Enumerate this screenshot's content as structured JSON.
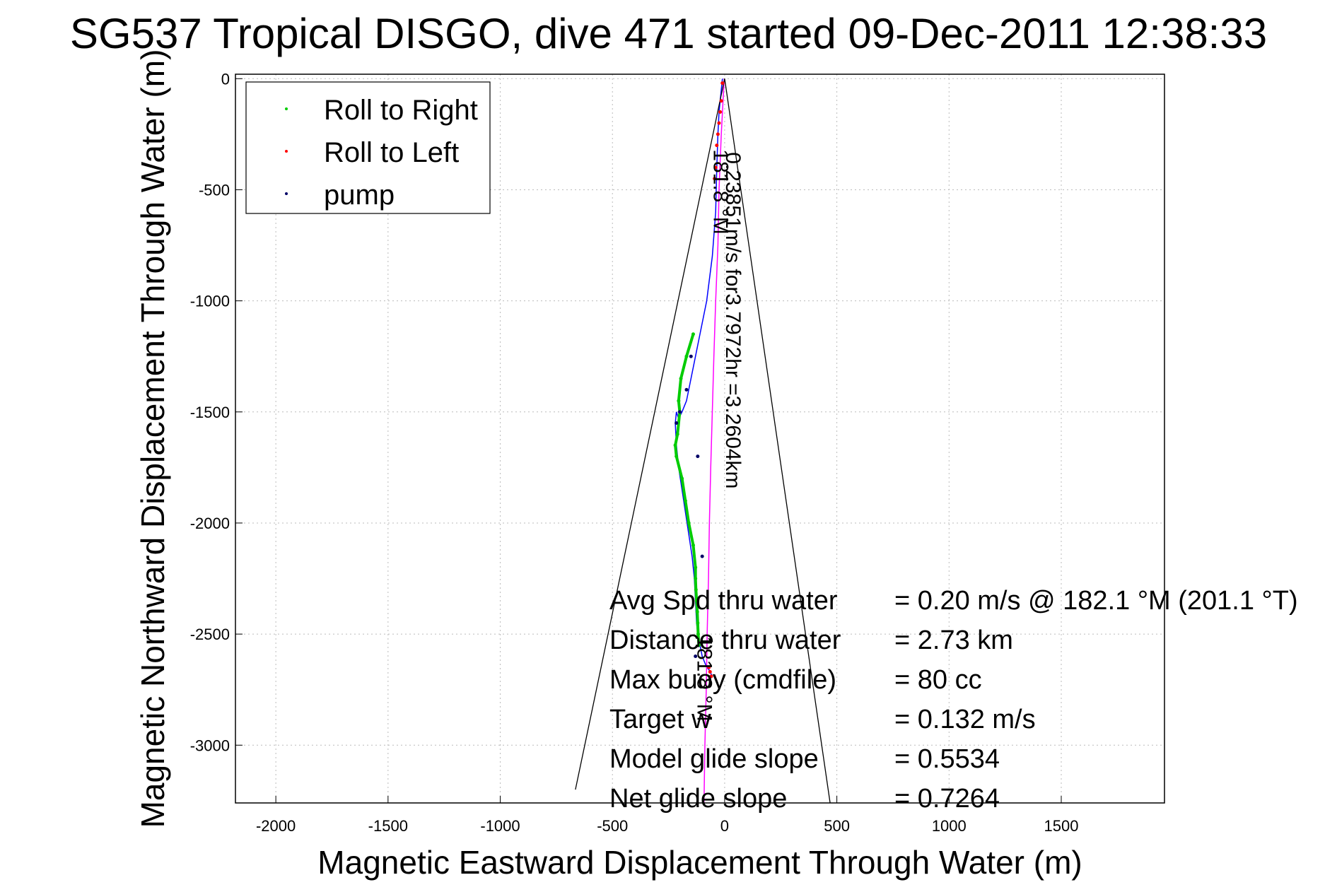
{
  "title": "SG537 Tropical DISGO, dive 471 started 09-Dec-2011 12:38:33",
  "chart_data": {
    "type": "line",
    "xlabel": "Magnetic Eastward Displacement Through Water (m)",
    "ylabel": "Magnetic Northward Displacement Through Water (m)",
    "xlim": [
      -2180,
      1960
    ],
    "ylim": [
      -3260,
      20
    ],
    "xticks": [
      -2000,
      -1500,
      -1000,
      -500,
      0,
      500,
      1000,
      1500
    ],
    "yticks": [
      0,
      -500,
      -1000,
      -1500,
      -2000,
      -2500,
      -3000
    ],
    "grid": true,
    "legend_position": "top-left",
    "legend": [
      {
        "label": "Roll to Right",
        "color": "#00cc00"
      },
      {
        "label": "Roll to Left",
        "color": "#ff0000"
      },
      {
        "label": "pump",
        "color": "#000066"
      }
    ],
    "track_color": "#0000ff",
    "series": [
      {
        "name": "track",
        "color": "#0000ff",
        "x": [
          -10,
          -15,
          -25,
          -30,
          -35,
          -40,
          -55,
          -80,
          -110,
          -130,
          -150,
          -170,
          -190,
          -205,
          -215,
          -220,
          -215,
          -205,
          -190,
          -175,
          -160,
          -145,
          -135,
          -130,
          -125,
          -120,
          -110,
          -100,
          -80,
          -70,
          -60,
          -55
        ],
        "y": [
          0,
          -50,
          -150,
          -250,
          -400,
          -600,
          -800,
          -1000,
          -1150,
          -1250,
          -1350,
          -1450,
          -1500,
          -1530,
          -1500,
          -1550,
          -1650,
          -1750,
          -1850,
          -1950,
          -2050,
          -2150,
          -2250,
          -2350,
          -2450,
          -2500,
          -2550,
          -2600,
          -2650,
          -2660,
          -2680,
          -2690
        ]
      },
      {
        "name": "magenta-track",
        "color": "#ff00ff",
        "x": [
          -2,
          -15,
          -25,
          -30,
          -40,
          -48,
          -55,
          -62,
          -68,
          -72,
          -78,
          -82,
          -88,
          -92
        ],
        "y": [
          0,
          -250,
          -500,
          -750,
          -1000,
          -1250,
          -1500,
          -1750,
          -2000,
          -2250,
          -2500,
          -2750,
          -3000,
          -3260
        ]
      },
      {
        "name": "cone-left",
        "color": "#000000",
        "x": [
          0,
          -665
        ],
        "y": [
          0,
          -3200
        ]
      },
      {
        "name": "cone-right",
        "color": "#000000",
        "x": [
          0,
          470
        ],
        "y": [
          0,
          -3260
        ]
      }
    ],
    "roll_right_points": {
      "x": [
        -140,
        -170,
        -195,
        -205,
        -200,
        -210,
        -220,
        -215,
        -190,
        -175,
        -160,
        -140,
        -130,
        -130,
        -128,
        -125,
        -122,
        -120,
        -118,
        -115
      ],
      "y": [
        -1150,
        -1250,
        -1350,
        -1450,
        -1500,
        -1600,
        -1650,
        -1700,
        -1800,
        -1900,
        -2000,
        -2100,
        -2200,
        -2250,
        -2300,
        -2350,
        -2400,
        -2450,
        -2500,
        -2550
      ]
    },
    "roll_left_points": {
      "x": [
        -10,
        -15,
        -20,
        -25,
        -30,
        -35,
        -40,
        -45,
        -70,
        -65,
        -60
      ],
      "y": [
        -20,
        -100,
        -150,
        -200,
        -250,
        -300,
        -400,
        -450,
        -2650,
        -2670,
        -2690
      ]
    },
    "pump_points": {
      "x": [
        -150,
        -170,
        -200,
        -215,
        -120,
        -100,
        -130
      ],
      "y": [
        -1250,
        -1400,
        -1500,
        -1550,
        -1700,
        -2150,
        -2600
      ]
    },
    "annotations": [
      {
        "text": "0.23851m/s for3.7972hr =3.2604km",
        "x": 0,
        "y": -320
      },
      {
        "text": "181.8 °M",
        "x": -80,
        "y": -320
      },
      {
        "text": "181.8 °M",
        "x": -140,
        "y": -2550
      }
    ],
    "summary": [
      {
        "label": "Avg Spd thru water",
        "value": "=  0.20 m/s @ 182.1 °M (201.1 °T)"
      },
      {
        "label": "Distance thru water",
        "value": "=  2.73 km"
      },
      {
        "label": "Max buoy (cmdfile)",
        "value": "= 80 cc"
      },
      {
        "label": "Target w",
        "value": "= 0.132 m/s"
      },
      {
        "label": "Model glide slope",
        "value": "= 0.5534"
      },
      {
        "label": "Net glide slope",
        "value": "= 0.7264"
      }
    ]
  }
}
